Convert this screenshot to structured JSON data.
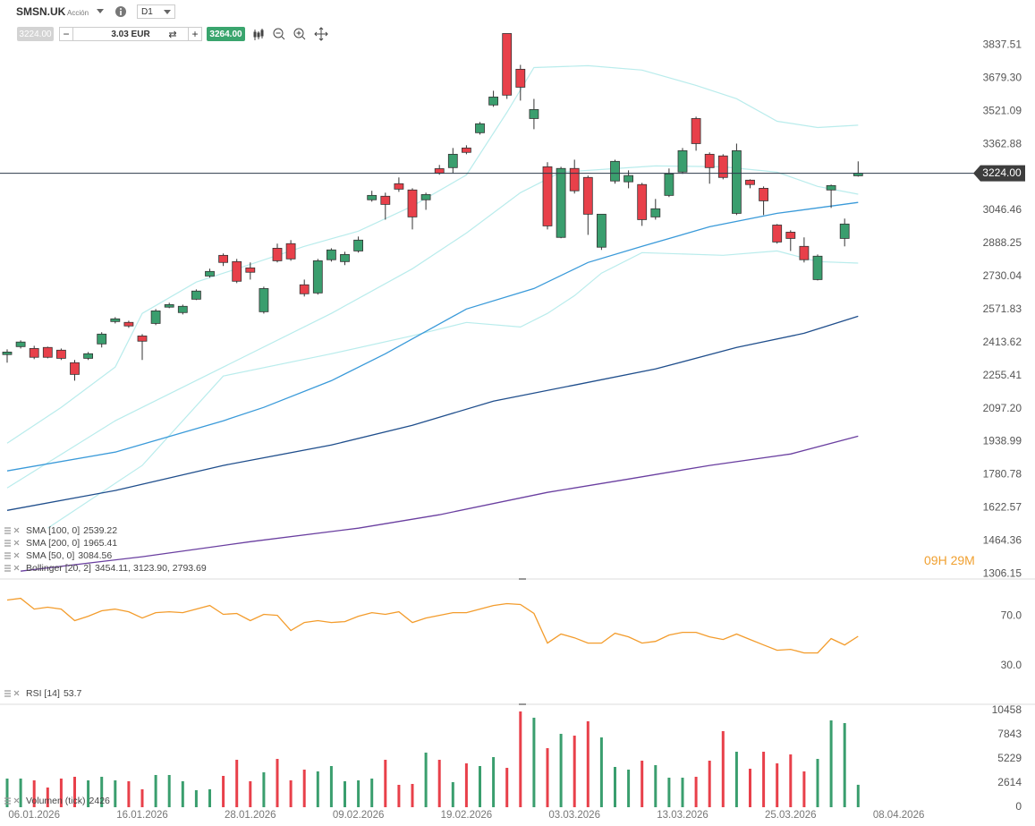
{
  "toolbar": {
    "symbol": "SMSN.UK",
    "instrument_type": "Acción",
    "timeframe": "D1",
    "bid": "3224.00",
    "volume_input": "3.03 EUR",
    "ask": "3264.00"
  },
  "countdown": "09H 29M",
  "chart_data": [
    {
      "type": "candlestick",
      "up_color": "#3a9e6e",
      "down_color": "#e8404a",
      "open": [
        2356,
        2394,
        2385,
        2390,
        2377,
        2317,
        2338,
        2407,
        2514,
        2510,
        2445,
        2505,
        2583,
        2557,
        2621,
        2732,
        2831,
        2801,
        2771,
        2561,
        2865,
        2887,
        2690,
        2651,
        2810,
        2801,
        2852,
        3097,
        3114,
        3174,
        3144,
        3097,
        3246,
        3251,
        3345,
        3418,
        3551,
        3893,
        3722,
        3486,
        3255,
        2917,
        3247,
        3204,
        2870,
        3187,
        3183,
        3170,
        3015,
        3118,
        3230,
        3486,
        3315,
        3307,
        3032,
        3191,
        3152,
        2976,
        2942,
        2874,
        2715,
        3144,
        2912,
        3212
      ],
      "high": [
        2381,
        2424,
        2398,
        2394,
        2385,
        2330,
        2368,
        2463,
        2535,
        2518,
        2454,
        2574,
        2604,
        2595,
        2668,
        2767,
        2840,
        2814,
        2797,
        2681,
        2887,
        2904,
        2715,
        2814,
        2865,
        2848,
        2921,
        3140,
        3131,
        3204,
        3152,
        3131,
        3264,
        3345,
        3358,
        3469,
        3619,
        3893,
        3743,
        3580,
        3277,
        3255,
        3289,
        3213,
        3028,
        3289,
        3238,
        3178,
        3101,
        3247,
        3345,
        3495,
        3324,
        3315,
        3366,
        3195,
        3161,
        2981,
        2951,
        2917,
        2835,
        3170,
        3007,
        3281
      ],
      "low": [
        2317,
        2385,
        2334,
        2338,
        2330,
        2231,
        2330,
        2390,
        2505,
        2484,
        2330,
        2497,
        2578,
        2548,
        2617,
        2724,
        2780,
        2698,
        2715,
        2552,
        2797,
        2805,
        2634,
        2643,
        2801,
        2784,
        2844,
        3088,
        3002,
        3135,
        2955,
        3049,
        3217,
        3225,
        3315,
        3409,
        3542,
        3580,
        3572,
        3435,
        2955,
        2913,
        3127,
        2929,
        2857,
        3174,
        3152,
        2972,
        3002,
        3110,
        3221,
        3332,
        3174,
        3195,
        3024,
        3152,
        3024,
        2887,
        2852,
        2797,
        2711,
        3058,
        2874,
        3208
      ],
      "close": [
        2368,
        2416,
        2343,
        2343,
        2338,
        2261,
        2360,
        2454,
        2527,
        2493,
        2420,
        2565,
        2595,
        2587,
        2660,
        2754,
        2797,
        2707,
        2750,
        2672,
        2805,
        2814,
        2647,
        2805,
        2857,
        2835,
        2904,
        3118,
        3075,
        3148,
        3015,
        3122,
        3225,
        3315,
        3324,
        3461,
        3589,
        3598,
        3636,
        3529,
        2972,
        3247,
        3140,
        3028,
        3028,
        3281,
        3213,
        3002,
        3054,
        3221,
        3332,
        3366,
        3251,
        3204,
        3332,
        3170,
        3092,
        2895,
        2912,
        2810,
        2827,
        3165,
        2981,
        3224
      ],
      "ylim": [
        1290,
        3925
      ],
      "yticks": [
        3837.51,
        {
          "value": 3679.3,
          "label": "3679.30"
        },
        3521.09,
        3362.88,
        3046.46,
        2888.25,
        2730.04,
        2571.83,
        2413.62,
        2255.41,
        {
          "value": 2097.2,
          "label": "2097.20"
        },
        1938.99,
        1780.78,
        1622.57,
        1464.36,
        1306.15
      ],
      "xticks": [
        {
          "value": 2,
          "label": "06.01.2026"
        },
        {
          "value": 10,
          "label": "16.01.2026"
        },
        {
          "value": 18,
          "label": "28.01.2026"
        },
        {
          "value": 26,
          "label": "09.02.2026"
        },
        {
          "value": 34,
          "label": "19.02.2026"
        },
        {
          "value": 42,
          "label": "03.03.2026"
        },
        {
          "value": 50,
          "label": "13.03.2026"
        },
        {
          "value": 58,
          "label": "25.03.2026"
        },
        {
          "value": 66,
          "label": "08.04.2026"
        }
      ],
      "last_price": {
        "value": 3224,
        "label": "3224.00"
      },
      "overlays": [
        {
          "name": "SMA [100, 0]",
          "color": "#1f4e8c",
          "x": [
            0,
            8,
            16,
            24,
            30,
            36,
            42,
            48,
            54,
            59,
            63
          ],
          "values": [
            1610,
            1705,
            1825,
            1923,
            2017,
            2133,
            2210,
            2287,
            2390,
            2458,
            2539.22
          ]
        },
        {
          "name": "SMA [200, 0]",
          "color": "#6a3fa0",
          "x": [
            1,
            10,
            18,
            26,
            32,
            40,
            46,
            52,
            58,
            63
          ],
          "values": [
            1319,
            1388,
            1460,
            1525,
            1589,
            1696,
            1760,
            1825,
            1880,
            1965.41
          ]
        },
        {
          "name": "SMA [50, 0]",
          "color": "#3a9ad9",
          "x": [
            0,
            8,
            16,
            19,
            24,
            28,
            34,
            39,
            43,
            47,
            52,
            57,
            63
          ],
          "values": [
            1799,
            1889,
            2039,
            2103,
            2231,
            2360,
            2574,
            2672,
            2797,
            2874,
            2968,
            3032,
            3084.56
          ]
        }
      ],
      "bollinger": {
        "name": "Bollinger [20, 2]",
        "color": "#b9ecec",
        "values_label": "3454.11, 3123.90, 2793.69",
        "upper": {
          "x": [
            0,
            4,
            8,
            10,
            14,
            18,
            22,
            26,
            30,
            34,
            37,
            39,
            43,
            47,
            51,
            54,
            57,
            60,
            63
          ],
          "values": [
            1932,
            2103,
            2296,
            2553,
            2703,
            2788,
            2874,
            2947,
            3067,
            3216,
            3516,
            3730,
            3739,
            3718,
            3645,
            3581,
            3473,
            3443,
            3454.11
          ]
        },
        "middle": {
          "x": [
            0,
            8,
            16,
            24,
            30,
            34,
            38,
            41,
            48,
            53,
            57,
            60,
            63
          ],
          "values": [
            1717,
            2039,
            2296,
            2553,
            2767,
            2938,
            3131,
            3229,
            3259,
            3255,
            3229,
            3161,
            3123.9
          ]
        },
        "lower": {
          "x": [
            3,
            10,
            16,
            24,
            30,
            34,
            38,
            40,
            42,
            44,
            47,
            53,
            57,
            60,
            63
          ],
          "values": [
            1525,
            1825,
            2253,
            2360,
            2446,
            2510,
            2488,
            2553,
            2638,
            2746,
            2844,
            2831,
            2852,
            2801,
            2793.69
          ]
        }
      }
    },
    {
      "type": "line",
      "name": "RSI [14]",
      "color": "#f39c2c",
      "values": [
        83.1,
        84.5,
        75.8,
        77.3,
        75.8,
        66.4,
        70,
        74.4,
        75.8,
        73.6,
        68.5,
        72.9,
        73.6,
        72.9,
        75.8,
        78.7,
        71.5,
        72.2,
        66.4,
        71.5,
        70.7,
        58.4,
        64.9,
        66.4,
        64.9,
        65.6,
        70,
        72.9,
        71.5,
        73.6,
        64.9,
        68.5,
        70.7,
        72.9,
        72.9,
        75.8,
        78.7,
        80.2,
        79.5,
        72.2,
        48.2,
        55.5,
        52.5,
        48.2,
        48.2,
        56.2,
        53.3,
        48.2,
        49.6,
        54.7,
        56.9,
        56.9,
        53.3,
        51.1,
        55.5,
        51.1,
        46.7,
        42.4,
        43.1,
        40.2,
        40.2,
        51.8,
        46.7,
        53.7
      ],
      "ylim": [
        0,
        98
      ],
      "yticks": [
        {
          "value": 70,
          "label": "70.0"
        },
        {
          "value": 30,
          "label": "30.0"
        }
      ]
    },
    {
      "type": "bar",
      "name": "Volumen (tick)",
      "values": [
        3098,
        3098,
        2904,
        2130,
        3098,
        3291,
        2904,
        3291,
        2904,
        2807,
        1936,
        3485,
        3485,
        2807,
        1839,
        1936,
        3388,
        5130,
        2807,
        3775,
        5227,
        2904,
        4066,
        3872,
        4453,
        2807,
        2904,
        3098,
        5130,
        2420,
        2517,
        5905,
        5130,
        2710,
        4743,
        4453,
        5421,
        4259,
        10358,
        9680,
        6389,
        7938,
        7744,
        9293,
        7550,
        4356,
        4066,
        5034,
        4550,
        3194,
        3194,
        3291,
        5034,
        8228,
        6002,
        4162,
        6002,
        4743,
        5711,
        3872,
        5227,
        9390,
        9099,
        2426
      ],
      "ylim": [
        0,
        10650
      ],
      "yticks": [
        10458,
        7843,
        5229,
        2614,
        0
      ]
    }
  ]
}
